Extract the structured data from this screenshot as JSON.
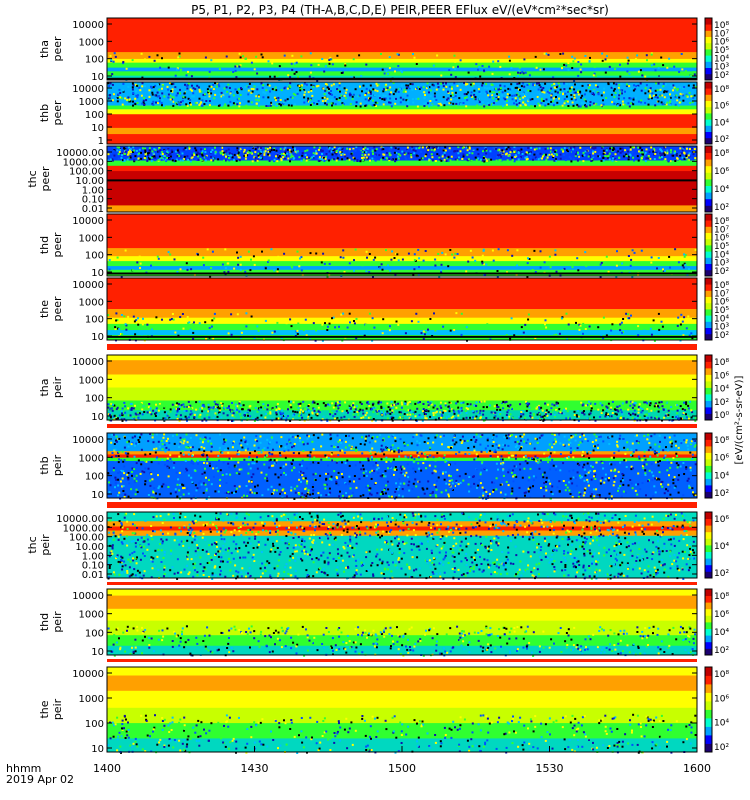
{
  "chart_data": {
    "type": "heatmap",
    "title": "P5, P1, P2, P3, P4 (TH-A,B,C,D,E) PEIR,PEER EFlux eV/(eV*cm²*sec*sr)",
    "time_axis": {
      "label": "hhmm",
      "date": "2019 Apr 02",
      "ticks": [
        "1400",
        "1430",
        "1500",
        "1530",
        "1600"
      ],
      "range": [
        "14:00",
        "16:00"
      ]
    },
    "colorbar_label": "[eV/(cm²-s-sr-eV)]",
    "colorscale": [
      "#1b0070",
      "#0000ff",
      "#00a0ff",
      "#00ffd0",
      "#30ff30",
      "#c8ff00",
      "#ffff00",
      "#ffa000",
      "#ff2000",
      "#c00000"
    ],
    "panels": [
      {
        "probe": "tha",
        "species": "peer",
        "ylabel": [
          "tha",
          "peer"
        ],
        "yticks": [
          "10000",
          "1000",
          "100",
          "10"
        ],
        "log_y": true,
        "cbar_ticks": [
          "10⁸",
          "10⁷",
          "10⁶",
          "10⁵",
          "10⁴",
          "10³",
          "10²"
        ],
        "bands": [
          [
            0.0,
            0.55,
            "#ff2000"
          ],
          [
            0.55,
            0.66,
            "#ffa000"
          ],
          [
            0.66,
            0.72,
            "#ffff00"
          ],
          [
            0.72,
            0.8,
            "#30ff30"
          ],
          [
            0.8,
            0.86,
            "#00a0ff"
          ],
          [
            0.86,
            0.93,
            "#30ff30"
          ],
          [
            0.93,
            1.0,
            "#00e0c0"
          ]
        ],
        "noise": "low",
        "line_frac": 0.98
      },
      {
        "probe": "thb",
        "species": "peer",
        "ylabel": [
          "thb",
          "peer"
        ],
        "yticks": [
          "10000",
          "1000",
          "100",
          "10",
          "1"
        ],
        "log_y": true,
        "cbar_ticks": [
          "10⁸",
          "10⁶",
          "10⁴",
          "10²"
        ],
        "bands": [
          [
            0.0,
            0.38,
            "#00b0ff"
          ],
          [
            0.38,
            0.44,
            "#30ff30"
          ],
          [
            0.44,
            0.52,
            "#ffff00"
          ],
          [
            0.52,
            0.74,
            "#ff2000"
          ],
          [
            0.74,
            0.84,
            "#ffa000"
          ],
          [
            0.84,
            1.0,
            "#ff2000"
          ]
        ],
        "noise": "high-top",
        "line_frac": null
      },
      {
        "probe": "thc",
        "species": "peer",
        "ylabel": [
          "thc",
          "peer"
        ],
        "yticks": [
          "10000.00",
          "1000.00",
          "100.00",
          "10.00",
          "1.00",
          "0.10",
          "0.01"
        ],
        "log_y": true,
        "cbar_ticks": [
          "10⁸",
          "10⁶",
          "10⁴",
          "10²"
        ],
        "bands": [
          [
            0.0,
            0.22,
            "#0040ff"
          ],
          [
            0.22,
            0.3,
            "#30ff30"
          ],
          [
            0.3,
            0.38,
            "#ff2000"
          ],
          [
            0.38,
            0.9,
            "#c80000"
          ],
          [
            0.9,
            1.0,
            "#ffa000"
          ]
        ],
        "noise": "high-top",
        "line_frac": 0.52
      },
      {
        "probe": "thd",
        "species": "peer",
        "ylabel": [
          "thd",
          "peer"
        ],
        "yticks": [
          "10000",
          "1000",
          "100",
          "10"
        ],
        "log_y": true,
        "cbar_ticks": [
          "10⁸",
          "10⁷",
          "10⁶",
          "10⁵",
          "10⁴",
          "10³",
          "10²"
        ],
        "bands": [
          [
            0.0,
            0.55,
            "#ff2000"
          ],
          [
            0.55,
            0.68,
            "#ffa000"
          ],
          [
            0.68,
            0.76,
            "#ffff00"
          ],
          [
            0.76,
            0.84,
            "#30ff30"
          ],
          [
            0.84,
            0.9,
            "#00a0ff"
          ],
          [
            0.9,
            1.0,
            "#30ff30"
          ]
        ],
        "noise": "low",
        "line_frac": 0.96
      },
      {
        "probe": "the",
        "species": "peer",
        "ylabel": [
          "the",
          "peer"
        ],
        "yticks": [
          "10000",
          "1000",
          "100",
          "10"
        ],
        "log_y": true,
        "cbar_ticks": [
          "10⁸",
          "10⁷",
          "10⁶",
          "10⁵",
          "10⁴",
          "10³",
          "10²"
        ],
        "bands": [
          [
            0.0,
            0.5,
            "#ff2000"
          ],
          [
            0.5,
            0.64,
            "#ffa000"
          ],
          [
            0.64,
            0.74,
            "#ffff00"
          ],
          [
            0.74,
            0.84,
            "#30ff30"
          ],
          [
            0.84,
            0.92,
            "#00c0ff"
          ],
          [
            0.92,
            1.0,
            "#30ff30"
          ]
        ],
        "noise": "low",
        "line_frac": 0.95
      },
      {
        "probe": "tha",
        "species": "peir",
        "ylabel": [
          "tha",
          "peir"
        ],
        "yticks": [
          "10000",
          "1000",
          "100",
          "10"
        ],
        "log_y": true,
        "cbar_ticks": [
          "10⁸",
          "10⁶",
          "10⁴",
          "10²",
          "10⁰"
        ],
        "bands": [
          [
            0.0,
            0.08,
            "#ffff00"
          ],
          [
            0.08,
            0.3,
            "#ffa000"
          ],
          [
            0.3,
            0.5,
            "#ffff00"
          ],
          [
            0.5,
            0.7,
            "#c8ff00"
          ],
          [
            0.7,
            0.85,
            "#30ff30"
          ],
          [
            0.85,
            1.0,
            "#00d8b0"
          ]
        ],
        "noise": "high-bottom",
        "line_frac": null
      },
      {
        "probe": "thb",
        "species": "peir",
        "ylabel": [
          "thb",
          "peir"
        ],
        "yticks": [
          "10000",
          "1000",
          "100",
          "10"
        ],
        "log_y": true,
        "cbar_ticks": [
          "10⁸",
          "10⁶",
          "10⁴",
          "10²"
        ],
        "bands": [
          [
            0.0,
            0.28,
            "#00a0ff"
          ],
          [
            0.28,
            0.33,
            "#ffa000"
          ],
          [
            0.33,
            0.38,
            "#ff2000"
          ],
          [
            0.38,
            0.43,
            "#30ff30"
          ],
          [
            0.43,
            1.0,
            "#0060ff"
          ]
        ],
        "noise": "high-all",
        "line_frac": null
      },
      {
        "probe": "thc",
        "species": "peir",
        "ylabel": [
          "thc",
          "peir"
        ],
        "yticks": [
          "10000.00",
          "1000.00",
          "100.00",
          "10.00",
          "1.00",
          "0.10",
          "0.01"
        ],
        "log_y": true,
        "cbar_ticks": [
          "10⁶",
          "10⁴",
          "10²"
        ],
        "bands": [
          [
            0.0,
            0.14,
            "#00e0c0"
          ],
          [
            0.14,
            0.22,
            "#ffa000"
          ],
          [
            0.22,
            0.28,
            "#ff2000"
          ],
          [
            0.28,
            0.36,
            "#ffa000"
          ],
          [
            0.36,
            1.0,
            "#00d8c0"
          ]
        ],
        "noise": "high-all",
        "line_frac": null
      },
      {
        "probe": "thd",
        "species": "peir",
        "ylabel": [
          "thd",
          "peir"
        ],
        "yticks": [
          "10000",
          "1000",
          "100",
          "10"
        ],
        "log_y": true,
        "cbar_ticks": [
          "10⁸",
          "10⁶",
          "10⁴",
          "10²"
        ],
        "bands": [
          [
            0.0,
            0.1,
            "#ffff00"
          ],
          [
            0.1,
            0.3,
            "#ffa000"
          ],
          [
            0.3,
            0.48,
            "#ffff00"
          ],
          [
            0.48,
            0.7,
            "#c8ff00"
          ],
          [
            0.7,
            0.86,
            "#30ff30"
          ],
          [
            0.86,
            1.0,
            "#00d8c0"
          ]
        ],
        "noise": "medium-bottom",
        "line_frac": null
      },
      {
        "probe": "the",
        "species": "peir",
        "ylabel": [
          "the",
          "peir"
        ],
        "yticks": [
          "10000",
          "1000",
          "100",
          "10"
        ],
        "log_y": true,
        "cbar_ticks": [
          "10⁸",
          "10⁶",
          "10⁴",
          "10²"
        ],
        "bands": [
          [
            0.0,
            0.1,
            "#ffff00"
          ],
          [
            0.1,
            0.28,
            "#ffa000"
          ],
          [
            0.28,
            0.48,
            "#ffff00"
          ],
          [
            0.48,
            0.66,
            "#c8ff00"
          ],
          [
            0.66,
            0.84,
            "#30ff30"
          ],
          [
            0.84,
            1.0,
            "#00d8c0"
          ]
        ],
        "noise": "medium-bottom",
        "line_frac": null
      }
    ]
  }
}
